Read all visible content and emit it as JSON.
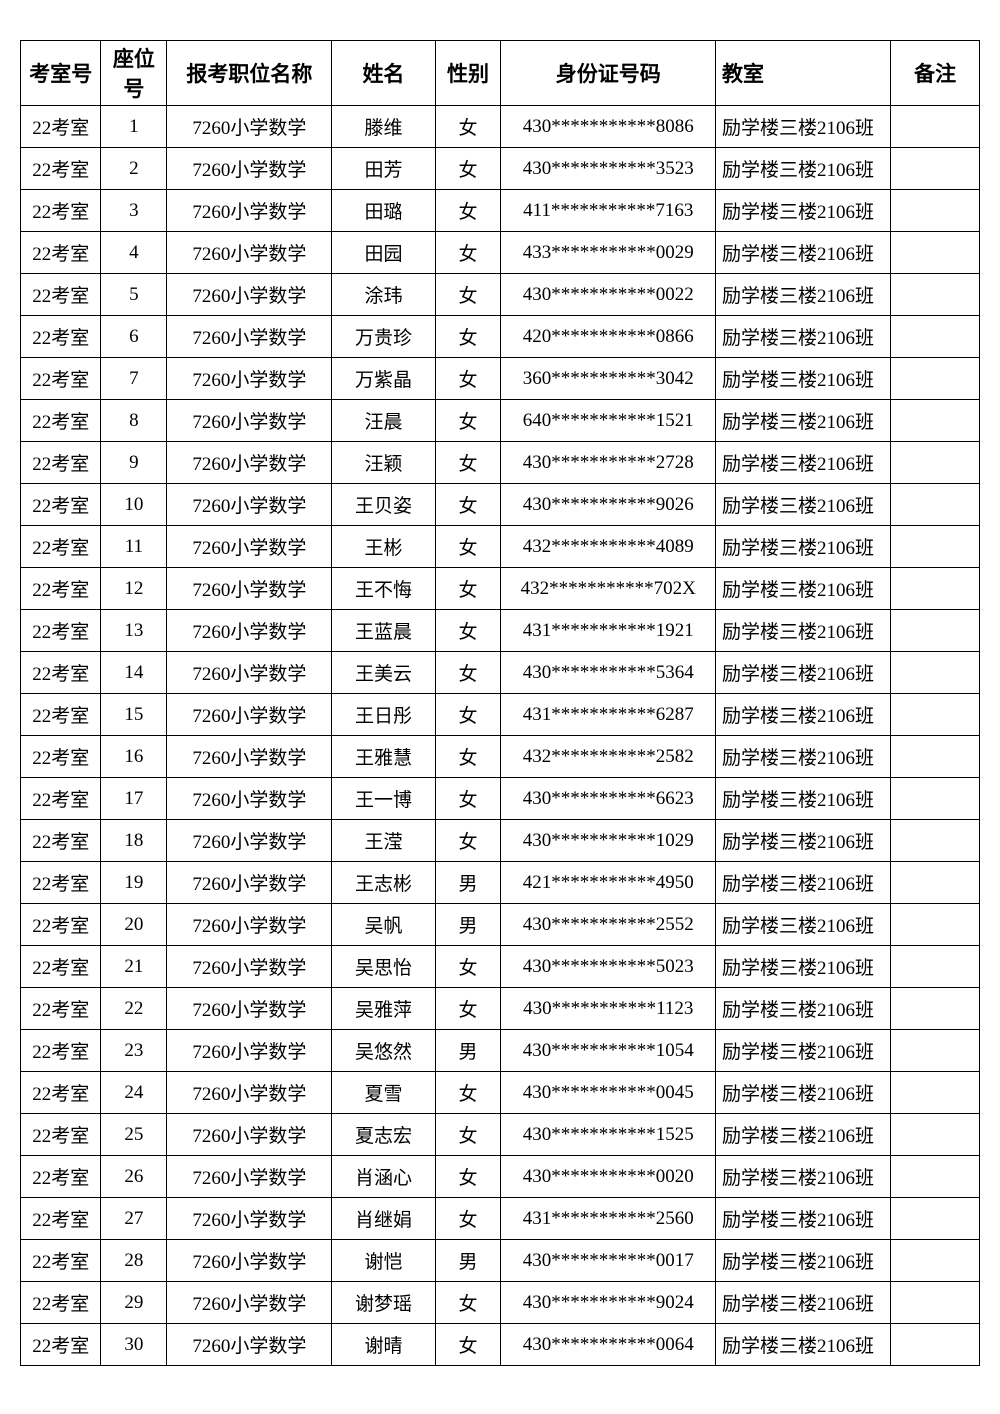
{
  "table": {
    "columns": [
      {
        "key": "room",
        "label": "考室号",
        "class": "col-room"
      },
      {
        "key": "seat",
        "label": "座位号",
        "class": "col-seat"
      },
      {
        "key": "position",
        "label": "报考职位名称",
        "class": "col-pos"
      },
      {
        "key": "name",
        "label": "姓名",
        "class": "col-name"
      },
      {
        "key": "gender",
        "label": "性别",
        "class": "col-gender"
      },
      {
        "key": "idnum",
        "label": "身份证号码",
        "class": "col-id"
      },
      {
        "key": "classroom",
        "label": "教室",
        "class": "col-class"
      },
      {
        "key": "note",
        "label": "备注",
        "class": "col-note"
      }
    ],
    "rows": [
      {
        "room": "22考室",
        "seat": "1",
        "position": "7260小学数学",
        "name": "滕维",
        "gender": "女",
        "idnum": "430***********8086",
        "classroom": "励学楼三楼2106班",
        "note": ""
      },
      {
        "room": "22考室",
        "seat": "2",
        "position": "7260小学数学",
        "name": "田芳",
        "gender": "女",
        "idnum": "430***********3523",
        "classroom": "励学楼三楼2106班",
        "note": ""
      },
      {
        "room": "22考室",
        "seat": "3",
        "position": "7260小学数学",
        "name": "田璐",
        "gender": "女",
        "idnum": "411***********7163",
        "classroom": "励学楼三楼2106班",
        "note": ""
      },
      {
        "room": "22考室",
        "seat": "4",
        "position": "7260小学数学",
        "name": "田园",
        "gender": "女",
        "idnum": "433***********0029",
        "classroom": "励学楼三楼2106班",
        "note": ""
      },
      {
        "room": "22考室",
        "seat": "5",
        "position": "7260小学数学",
        "name": "涂玮",
        "gender": "女",
        "idnum": "430***********0022",
        "classroom": "励学楼三楼2106班",
        "note": ""
      },
      {
        "room": "22考室",
        "seat": "6",
        "position": "7260小学数学",
        "name": "万贵珍",
        "gender": "女",
        "idnum": "420***********0866",
        "classroom": "励学楼三楼2106班",
        "note": ""
      },
      {
        "room": "22考室",
        "seat": "7",
        "position": "7260小学数学",
        "name": "万紫晶",
        "gender": "女",
        "idnum": "360***********3042",
        "classroom": "励学楼三楼2106班",
        "note": ""
      },
      {
        "room": "22考室",
        "seat": "8",
        "position": "7260小学数学",
        "name": "汪晨",
        "gender": "女",
        "idnum": "640***********1521",
        "classroom": "励学楼三楼2106班",
        "note": ""
      },
      {
        "room": "22考室",
        "seat": "9",
        "position": "7260小学数学",
        "name": "汪颖",
        "gender": "女",
        "idnum": "430***********2728",
        "classroom": "励学楼三楼2106班",
        "note": ""
      },
      {
        "room": "22考室",
        "seat": "10",
        "position": "7260小学数学",
        "name": "王贝姿",
        "gender": "女",
        "idnum": "430***********9026",
        "classroom": "励学楼三楼2106班",
        "note": ""
      },
      {
        "room": "22考室",
        "seat": "11",
        "position": "7260小学数学",
        "name": "王彬",
        "gender": "女",
        "idnum": "432***********4089",
        "classroom": "励学楼三楼2106班",
        "note": ""
      },
      {
        "room": "22考室",
        "seat": "12",
        "position": "7260小学数学",
        "name": "王不悔",
        "gender": "女",
        "idnum": "432***********702X",
        "classroom": "励学楼三楼2106班",
        "note": ""
      },
      {
        "room": "22考室",
        "seat": "13",
        "position": "7260小学数学",
        "name": "王蓝晨",
        "gender": "女",
        "idnum": "431***********1921",
        "classroom": "励学楼三楼2106班",
        "note": ""
      },
      {
        "room": "22考室",
        "seat": "14",
        "position": "7260小学数学",
        "name": "王美云",
        "gender": "女",
        "idnum": "430***********5364",
        "classroom": "励学楼三楼2106班",
        "note": ""
      },
      {
        "room": "22考室",
        "seat": "15",
        "position": "7260小学数学",
        "name": "王日彤",
        "gender": "女",
        "idnum": "431***********6287",
        "classroom": "励学楼三楼2106班",
        "note": ""
      },
      {
        "room": "22考室",
        "seat": "16",
        "position": "7260小学数学",
        "name": "王雅慧",
        "gender": "女",
        "idnum": "432***********2582",
        "classroom": "励学楼三楼2106班",
        "note": ""
      },
      {
        "room": "22考室",
        "seat": "17",
        "position": "7260小学数学",
        "name": "王一博",
        "gender": "女",
        "idnum": "430***********6623",
        "classroom": "励学楼三楼2106班",
        "note": ""
      },
      {
        "room": "22考室",
        "seat": "18",
        "position": "7260小学数学",
        "name": "王滢",
        "gender": "女",
        "idnum": "430***********1029",
        "classroom": "励学楼三楼2106班",
        "note": ""
      },
      {
        "room": "22考室",
        "seat": "19",
        "position": "7260小学数学",
        "name": "王志彬",
        "gender": "男",
        "idnum": "421***********4950",
        "classroom": "励学楼三楼2106班",
        "note": ""
      },
      {
        "room": "22考室",
        "seat": "20",
        "position": "7260小学数学",
        "name": "吴帆",
        "gender": "男",
        "idnum": "430***********2552",
        "classroom": "励学楼三楼2106班",
        "note": ""
      },
      {
        "room": "22考室",
        "seat": "21",
        "position": "7260小学数学",
        "name": "吴思怡",
        "gender": "女",
        "idnum": "430***********5023",
        "classroom": "励学楼三楼2106班",
        "note": ""
      },
      {
        "room": "22考室",
        "seat": "22",
        "position": "7260小学数学",
        "name": "吴雅萍",
        "gender": "女",
        "idnum": "430***********1123",
        "classroom": "励学楼三楼2106班",
        "note": ""
      },
      {
        "room": "22考室",
        "seat": "23",
        "position": "7260小学数学",
        "name": "吴悠然",
        "gender": "男",
        "idnum": "430***********1054",
        "classroom": "励学楼三楼2106班",
        "note": ""
      },
      {
        "room": "22考室",
        "seat": "24",
        "position": "7260小学数学",
        "name": "夏雪",
        "gender": "女",
        "idnum": "430***********0045",
        "classroom": "励学楼三楼2106班",
        "note": ""
      },
      {
        "room": "22考室",
        "seat": "25",
        "position": "7260小学数学",
        "name": "夏志宏",
        "gender": "女",
        "idnum": "430***********1525",
        "classroom": "励学楼三楼2106班",
        "note": ""
      },
      {
        "room": "22考室",
        "seat": "26",
        "position": "7260小学数学",
        "name": "肖涵心",
        "gender": "女",
        "idnum": "430***********0020",
        "classroom": "励学楼三楼2106班",
        "note": ""
      },
      {
        "room": "22考室",
        "seat": "27",
        "position": "7260小学数学",
        "name": "肖继娟",
        "gender": "女",
        "idnum": "431***********2560",
        "classroom": "励学楼三楼2106班",
        "note": ""
      },
      {
        "room": "22考室",
        "seat": "28",
        "position": "7260小学数学",
        "name": "谢恺",
        "gender": "男",
        "idnum": "430***********0017",
        "classroom": "励学楼三楼2106班",
        "note": ""
      },
      {
        "room": "22考室",
        "seat": "29",
        "position": "7260小学数学",
        "name": "谢梦瑶",
        "gender": "女",
        "idnum": "430***********9024",
        "classroom": "励学楼三楼2106班",
        "note": ""
      },
      {
        "room": "22考室",
        "seat": "30",
        "position": "7260小学数学",
        "name": "谢晴",
        "gender": "女",
        "idnum": "430***********0064",
        "classroom": "励学楼三楼2106班",
        "note": ""
      }
    ]
  }
}
